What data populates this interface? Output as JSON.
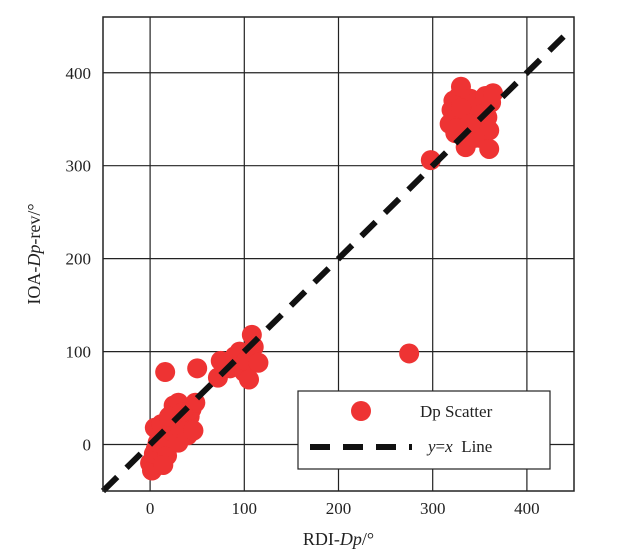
{
  "chart_data": {
    "type": "scatter",
    "title": "",
    "xlabel": {
      "prefix": "RDI-",
      "italic": "Dp",
      "suffix": "/°"
    },
    "ylabel": {
      "prefix": "IOA-",
      "italic": "Dp",
      "suffix": "-rev/°"
    },
    "xlim": [
      -50,
      450
    ],
    "ylim": [
      -50,
      460
    ],
    "xticks": [
      0,
      100,
      200,
      300,
      400
    ],
    "yticks": [
      0,
      100,
      200,
      300,
      400
    ],
    "grid": true,
    "legend_position": "bottom-right",
    "series": [
      {
        "name": "Dp Scatter",
        "kind": "scatter",
        "color": "#ee3333",
        "points": [
          [
            0,
            -20
          ],
          [
            2,
            -28
          ],
          [
            4,
            -10
          ],
          [
            6,
            -5
          ],
          [
            8,
            2
          ],
          [
            10,
            10
          ],
          [
            5,
            18
          ],
          [
            12,
            22
          ],
          [
            15,
            5
          ],
          [
            18,
            -12
          ],
          [
            14,
            -22
          ],
          [
            20,
            8
          ],
          [
            22,
            15
          ],
          [
            24,
            25
          ],
          [
            26,
            35
          ],
          [
            28,
            12
          ],
          [
            30,
            2
          ],
          [
            32,
            18
          ],
          [
            34,
            28
          ],
          [
            36,
            40
          ],
          [
            38,
            22
          ],
          [
            40,
            10
          ],
          [
            42,
            30
          ],
          [
            44,
            38
          ],
          [
            46,
            15
          ],
          [
            48,
            45
          ],
          [
            25,
            42
          ],
          [
            30,
            45
          ],
          [
            35,
            35
          ],
          [
            20,
            30
          ],
          [
            16,
            78
          ],
          [
            50,
            82
          ],
          [
            72,
            72
          ],
          [
            75,
            90
          ],
          [
            85,
            82
          ],
          [
            90,
            95
          ],
          [
            95,
            100
          ],
          [
            100,
            78
          ],
          [
            102,
            90
          ],
          [
            105,
            70
          ],
          [
            108,
            118
          ],
          [
            110,
            105
          ],
          [
            115,
            88
          ],
          [
            275,
            98
          ],
          [
            298,
            306
          ],
          [
            318,
            345
          ],
          [
            320,
            360
          ],
          [
            322,
            370
          ],
          [
            324,
            335
          ],
          [
            326,
            355
          ],
          [
            328,
            375
          ],
          [
            330,
            385
          ],
          [
            332,
            348
          ],
          [
            334,
            365
          ],
          [
            336,
            328
          ],
          [
            338,
            358
          ],
          [
            340,
            372
          ],
          [
            342,
            338
          ],
          [
            344,
            350
          ],
          [
            346,
            368
          ],
          [
            348,
            342
          ],
          [
            350,
            330
          ],
          [
            352,
            362
          ],
          [
            354,
            345
          ],
          [
            356,
            375
          ],
          [
            358,
            352
          ],
          [
            360,
            338
          ],
          [
            362,
            368
          ],
          [
            364,
            378
          ],
          [
            360,
            318
          ],
          [
            335,
            320
          ],
          [
            325,
            340
          ],
          [
            345,
            330
          ],
          [
            350,
            355
          ],
          [
            330,
            362
          ],
          [
            340,
            345
          ]
        ]
      },
      {
        "name": "y=x Line",
        "name_parts": {
          "italic": "y",
          "eq": "=",
          "italic2": "x",
          "rest": "  Line"
        },
        "kind": "line",
        "color": "#111111",
        "dash": "dashed",
        "x": [
          -50,
          445
        ],
        "y": [
          -50,
          445
        ]
      }
    ]
  }
}
